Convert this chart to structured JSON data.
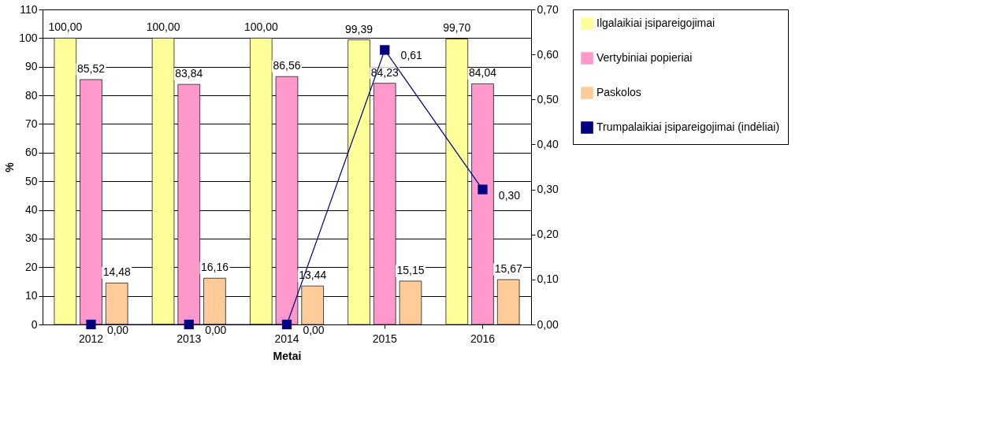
{
  "chart_data": {
    "type": "bar",
    "xlabel": "Metai",
    "ylabel": "%",
    "categories": [
      "2012",
      "2013",
      "2014",
      "2015",
      "2016"
    ],
    "series": [
      {
        "name": "Ilgalaikiai įsipareigojimai",
        "color": "#ffff99",
        "values": [
          100,
          100,
          100,
          99.39,
          99.7
        ],
        "value_labels": [
          "100,00",
          "100,00",
          "100,00",
          "99,39",
          "99,70"
        ]
      },
      {
        "name": "Vertybiniai popieriai",
        "color": "#ff99cc",
        "values": [
          85.52,
          83.84,
          86.56,
          84.23,
          84.04
        ],
        "value_labels": [
          "85,52",
          "83,84",
          "86,56",
          "84,23",
          "84,04"
        ]
      },
      {
        "name": "Paskolos",
        "color": "#ffcc99",
        "values": [
          14.48,
          16.16,
          13.44,
          15.15,
          15.67
        ],
        "value_labels": [
          "14,48",
          "16,16",
          "13,44",
          "15,15",
          "15,67"
        ]
      },
      {
        "name": "Trumpalaikiai įsipareigojimai (indėliai)",
        "type": "line",
        "axis": "y2",
        "color": "#000080",
        "values": [
          0,
          0,
          0,
          0.61,
          0.3
        ],
        "value_labels": [
          "0,00",
          "0,00",
          "0,00",
          "0,61",
          "0,30"
        ]
      }
    ],
    "ylim": [
      0,
      110
    ],
    "yticks": [
      0,
      10,
      20,
      30,
      40,
      50,
      60,
      70,
      80,
      90,
      100,
      110
    ],
    "y2lim": [
      0,
      0.7
    ],
    "y2ticks": [
      {
        "value": 0,
        "label": "0,00"
      },
      {
        "value": 0.1,
        "label": "0,10"
      },
      {
        "value": 0.2,
        "label": "0,20"
      },
      {
        "value": 0.3,
        "label": "0,30"
      },
      {
        "value": 0.4,
        "label": "0,40"
      },
      {
        "value": 0.5,
        "label": "0,50"
      },
      {
        "value": 0.6,
        "label": "0,60"
      },
      {
        "value": 0.7,
        "label": "0,70"
      }
    ],
    "grid": "y",
    "legend": "right",
    "marker": "square",
    "line_style": "solid"
  }
}
